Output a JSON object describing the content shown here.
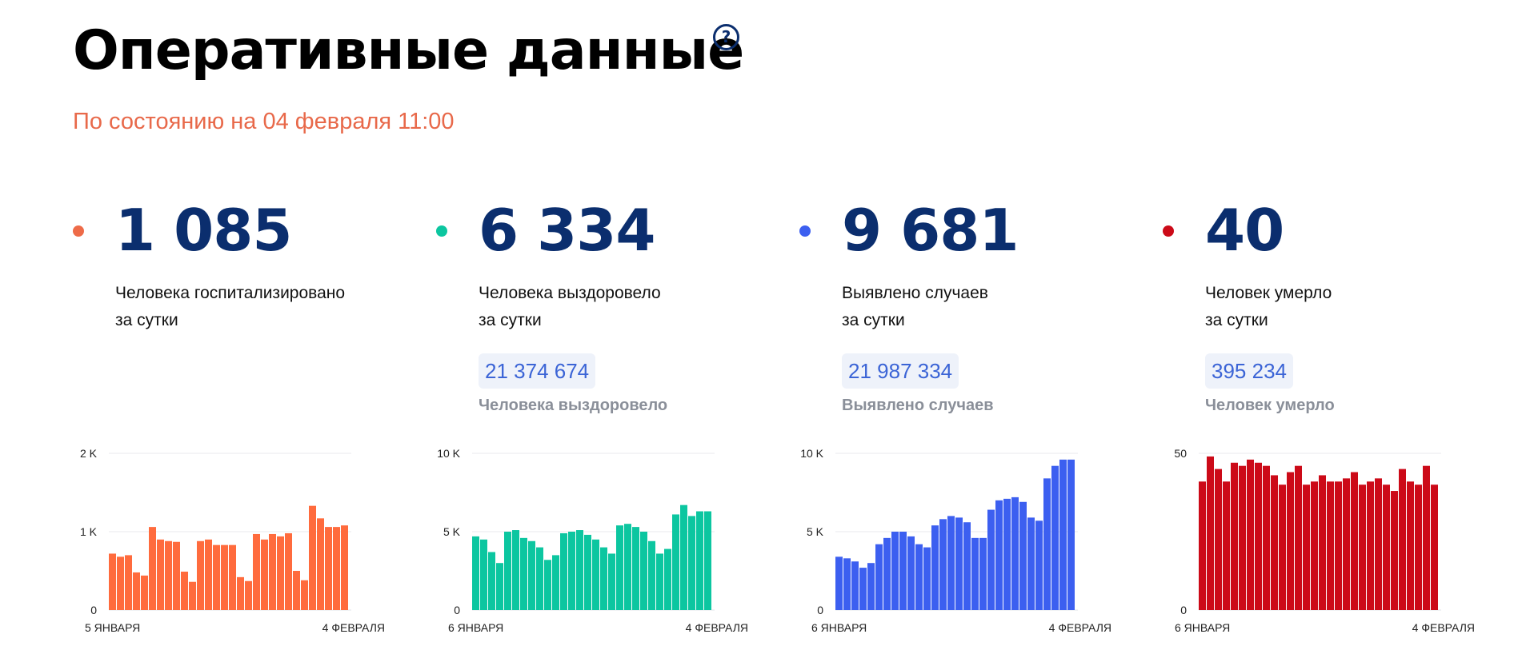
{
  "header": {
    "title": "Оперативные данные",
    "help_icon": "?",
    "status": "По состоянию на 04 февраля 11:00"
  },
  "cards": [
    {
      "value": "1 085",
      "label_line1": "Человека госпитализировано",
      "label_line2": "за сутки",
      "total": "",
      "total_caption": "",
      "color": "#ff6b3d",
      "dot_color": "#ee6b48"
    },
    {
      "value": "6 334",
      "label_line1": "Человека выздоровело",
      "label_line2": "за сутки",
      "total": "21 374 674",
      "total_caption": "Человека выздоровело",
      "color": "#0cc6a0",
      "dot_color": "#0cc6a0"
    },
    {
      "value": "9 681",
      "label_line1": "Выявлено случаев",
      "label_line2": "за сутки",
      "total": "21 987 334",
      "total_caption": "Выявлено случаев",
      "color": "#3c5ff0",
      "dot_color": "#3c5ff0"
    },
    {
      "value": "40",
      "label_line1": "Человек умерло",
      "label_line2": "за сутки",
      "total": "395 234",
      "total_caption": "Человек умерло",
      "color": "#cc0a18",
      "dot_color": "#cc0a18"
    }
  ],
  "chart_data": [
    {
      "type": "bar",
      "ylim": [
        0,
        2000
      ],
      "yticks": [
        {
          "value": 0,
          "label": "0"
        },
        {
          "value": 1000,
          "label": "1 K"
        },
        {
          "value": 2000,
          "label": "2 K"
        }
      ],
      "x_start_label": "5 ЯНВАРЯ",
      "x_end_label": "4 ФЕВРАЛЯ",
      "values": [
        720,
        680,
        700,
        480,
        440,
        1060,
        900,
        880,
        870,
        490,
        360,
        880,
        900,
        830,
        830,
        830,
        420,
        370,
        970,
        900,
        970,
        940,
        980,
        500,
        380,
        1330,
        1170,
        1060,
        1060,
        1080
      ]
    },
    {
      "type": "bar",
      "ylim": [
        0,
        10000
      ],
      "yticks": [
        {
          "value": 0,
          "label": "0"
        },
        {
          "value": 5000,
          "label": "5 K"
        },
        {
          "value": 10000,
          "label": "10 K"
        }
      ],
      "x_start_label": "6 ЯНВАРЯ",
      "x_end_label": "4 ФЕВРАЛЯ",
      "values": [
        4700,
        4500,
        3700,
        3000,
        5000,
        5100,
        4600,
        4400,
        4000,
        3200,
        3500,
        4900,
        5000,
        5100,
        4800,
        4500,
        4000,
        3600,
        5400,
        5500,
        5300,
        5000,
        4400,
        3600,
        3900,
        6100,
        6700,
        6000,
        6300,
        6300
      ]
    },
    {
      "type": "bar",
      "ylim": [
        0,
        10000
      ],
      "yticks": [
        {
          "value": 0,
          "label": "0"
        },
        {
          "value": 5000,
          "label": "5 K"
        },
        {
          "value": 10000,
          "label": "10 K"
        }
      ],
      "x_start_label": "6 ЯНВАРЯ",
      "x_end_label": "4 ФЕВРАЛЯ",
      "values": [
        3400,
        3300,
        3100,
        2700,
        3000,
        4200,
        4600,
        5000,
        5000,
        4700,
        4200,
        4000,
        5400,
        5800,
        6000,
        5900,
        5600,
        4600,
        4600,
        6400,
        7000,
        7100,
        7200,
        6900,
        5900,
        5700,
        8400,
        9200,
        9600,
        9600
      ]
    },
    {
      "type": "bar",
      "ylim": [
        0,
        50
      ],
      "yticks": [
        {
          "value": 0,
          "label": "0"
        },
        {
          "value": 50,
          "label": "50"
        }
      ],
      "x_start_label": "6 ЯНВАРЯ",
      "x_end_label": "4 ФЕВРАЛЯ",
      "values": [
        41,
        49,
        45,
        41,
        47,
        46,
        48,
        47,
        46,
        43,
        40,
        44,
        46,
        40,
        41,
        43,
        41,
        41,
        42,
        44,
        40,
        41,
        42,
        40,
        38,
        45,
        41,
        40,
        46,
        40
      ]
    }
  ]
}
